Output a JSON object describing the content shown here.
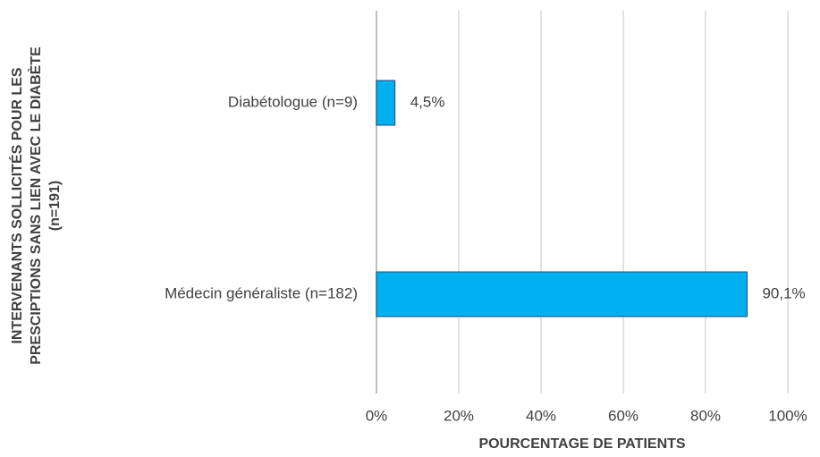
{
  "chart_data": {
    "type": "bar",
    "orientation": "horizontal",
    "ylabel": [
      "INTERVENANTS SOLLICITÉS POUR LES",
      "PRESCIPTIONS SANS LIEN AVEC LE DIABÈTE",
      "(n=191)"
    ],
    "xlabel": "POURCENTAGE DE PATIENTS",
    "categories": [
      "Diabétologue (n=9)",
      "Médecin généraliste (n=182)"
    ],
    "values": [
      4.5,
      90.1
    ],
    "value_labels": [
      "4,5%",
      "90,1%"
    ],
    "color": "#00b0f0",
    "xlim": [
      0,
      100
    ],
    "xticks": [
      {
        "value": 0,
        "label": "0%"
      },
      {
        "value": 20,
        "label": "20%"
      },
      {
        "value": 40,
        "label": "40%"
      },
      {
        "value": 60,
        "label": "60%"
      },
      {
        "value": 80,
        "label": "80%"
      },
      {
        "value": 100,
        "label": "100%"
      }
    ],
    "grid": true
  }
}
